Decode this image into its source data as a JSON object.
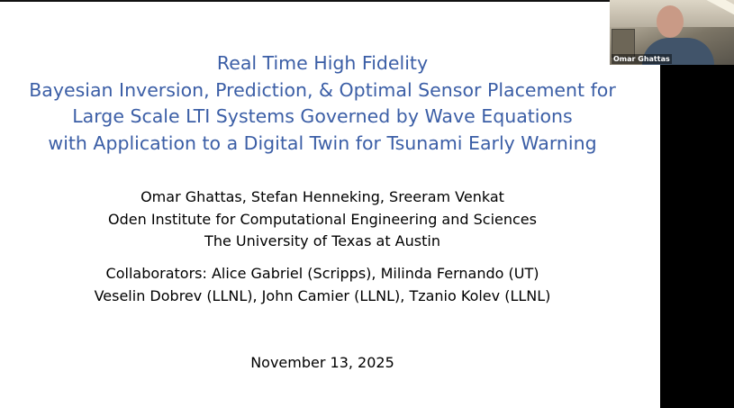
{
  "slide": {
    "title_lines": [
      "Real Time High Fidelity",
      "Bayesian Inversion, Prediction, & Optimal Sensor Placement for",
      "Large Scale LTI Systems Governed by Wave Equations",
      "with Application to a Digital Twin for Tsunami Early Warning"
    ],
    "authors_lines": [
      "Omar Ghattas, Stefan Henneking, Sreeram Venkat",
      "Oden Institute for Computational Engineering and Sciences",
      "The University of Texas at Austin"
    ],
    "collaborators_lines": [
      "Collaborators: Alice Gabriel (Scripps), Milinda Fernando (UT)",
      "Veselin Dobrev (LLNL), John Camier (LLNL), Tzanio Kolev (LLNL)"
    ],
    "date": "November 13, 2025",
    "title_color": "#3b5ea6"
  },
  "video": {
    "participant_name": "Omar Ghattas"
  }
}
